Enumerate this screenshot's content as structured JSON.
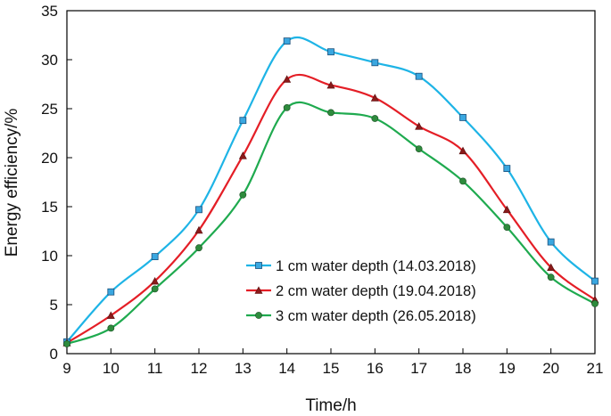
{
  "chart_data": {
    "type": "line",
    "title": "",
    "xlabel": "Time/h",
    "ylabel": "Energy efficiency/%",
    "xlim": [
      9,
      21
    ],
    "ylim": [
      0,
      35
    ],
    "x_ticks": [
      "9",
      "10",
      "11",
      "12",
      "13",
      "14",
      "15",
      "16",
      "17",
      "18",
      "19",
      "20",
      "21"
    ],
    "y_ticks": [
      "0",
      "5",
      "10",
      "15",
      "20",
      "25",
      "30",
      "35"
    ],
    "x": [
      9,
      10,
      11,
      12,
      13,
      14,
      15,
      16,
      17,
      18,
      19,
      20,
      21
    ],
    "grid": false,
    "legend_position": "lower-right",
    "series": [
      {
        "name": "1 cm water depth (14.03.2018)",
        "marker": "square",
        "line_color": "#1EB4E6",
        "marker_color": "#1C8CD2",
        "values": [
          1.2,
          6.3,
          9.9,
          14.7,
          23.8,
          31.9,
          30.8,
          29.7,
          28.3,
          24.1,
          18.9,
          11.4,
          7.4
        ]
      },
      {
        "name": "2 cm water depth (19.04.2018)",
        "marker": "triangle",
        "line_color": "#E41E26",
        "marker_color": "#8B1A1A",
        "values": [
          1.1,
          3.9,
          7.4,
          12.6,
          20.2,
          28.0,
          27.4,
          26.1,
          23.2,
          20.7,
          14.7,
          8.8,
          5.5
        ]
      },
      {
        "name": "3 cm water depth (26.05.2018)",
        "marker": "circle",
        "line_color": "#1FAA4F",
        "marker_color": "#2E8B3D",
        "values": [
          1.0,
          2.6,
          6.6,
          10.8,
          16.2,
          25.1,
          24.6,
          24.0,
          20.9,
          17.6,
          12.9,
          7.8,
          5.1
        ]
      }
    ]
  }
}
